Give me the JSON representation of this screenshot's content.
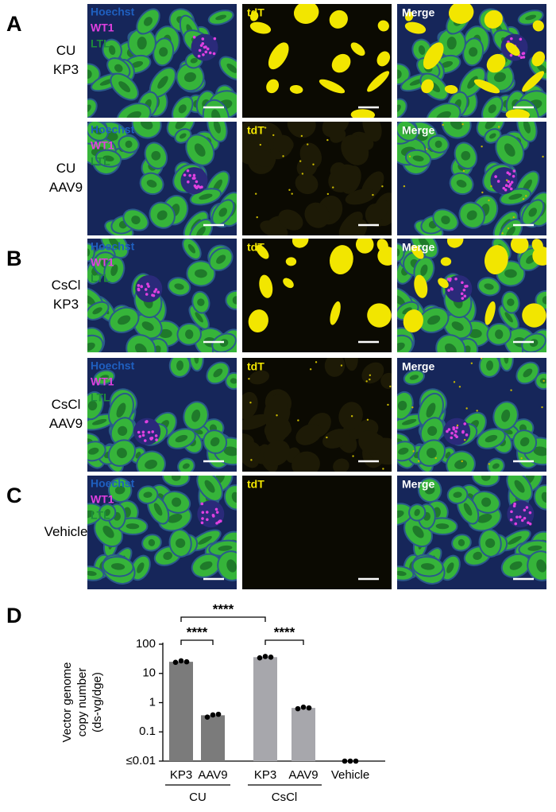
{
  "figure": {
    "panel_labels": [
      "A",
      "B",
      "C",
      "D"
    ],
    "image_rows": [
      {
        "condition": [
          "CU",
          "KP3"
        ],
        "channels": [
          "Hoechst",
          "WT1",
          "LTL"
        ],
        "tdt_label": "tdT",
        "merge_label": "Merge"
      },
      {
        "condition": [
          "CU",
          "AAV9"
        ],
        "channels": [
          "Hoechst",
          "WT1",
          "LTL"
        ],
        "tdt_label": "tdT",
        "merge_label": "Merge"
      },
      {
        "condition": [
          "CsCl",
          "KP3"
        ],
        "channels": [
          "Hoechst",
          "WT1",
          "LTL"
        ],
        "tdt_label": "tdT",
        "merge_label": "Merge"
      },
      {
        "condition": [
          "CsCl",
          "AAV9"
        ],
        "channels": [
          "Hoechst",
          "WT1",
          "LTL"
        ],
        "tdt_label": "tdT",
        "merge_label": "Merge"
      },
      {
        "condition": [
          "Vehicle"
        ],
        "channels": [
          "Hoechst",
          "WT1",
          "LTL"
        ],
        "tdt_label": "tdT",
        "merge_label": "Merge"
      }
    ]
  },
  "chart_data": {
    "type": "bar",
    "ylabel": [
      "Vector genome",
      "copy number",
      "(ds-vg/dge)"
    ],
    "log_scale": true,
    "ylim": [
      0.01,
      100
    ],
    "yticks": [
      {
        "value": 0.01,
        "label": "≤0.01"
      },
      0.1,
      1,
      10,
      100
    ],
    "categories": [
      "KP3",
      "AAV9",
      "KP3",
      "AAV9",
      "Vehicle"
    ],
    "groups": [
      "CU",
      "CsCl"
    ],
    "values": [
      25,
      0.37,
      36,
      0.66,
      null
    ],
    "colors": [
      "#7b7b7b",
      "#7b7b7b",
      "#a7a7ac",
      "#a7a7ac",
      "#a7a7ac"
    ],
    "points": [
      [
        24,
        27,
        25
      ],
      [
        0.32,
        0.38,
        0.4
      ],
      [
        34,
        38,
        36
      ],
      [
        0.62,
        0.7,
        0.66
      ],
      [
        0.01,
        0.01,
        0.01
      ]
    ],
    "annotations": [
      "****",
      "****",
      "****"
    ]
  }
}
